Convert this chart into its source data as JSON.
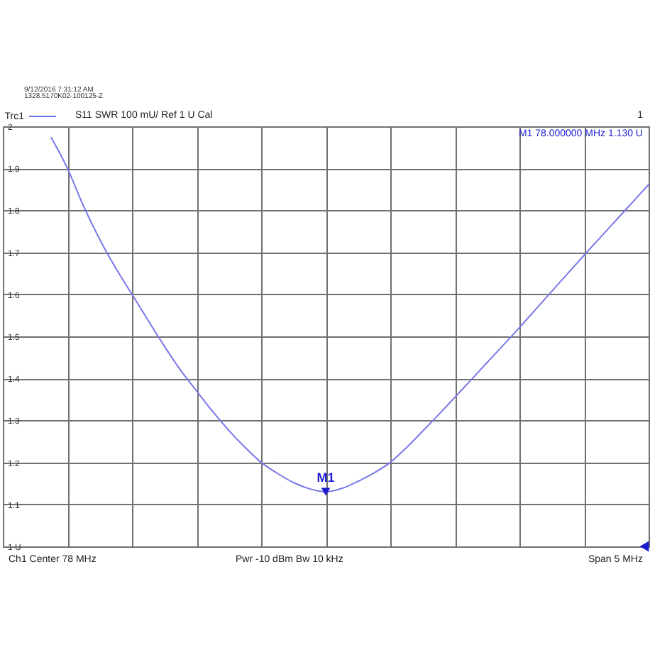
{
  "chart_data": {
    "type": "line",
    "annotations": [
      "9/12/2016 7:31:12 AM",
      "1328.5170K02-100125-Z",
      "S11 SWR 100 mU/ Ref 1 U Cal",
      "1",
      "M1 78.000000 MHz 1.130 U",
      "Ch1 Center 78 MHz",
      "Pwr -10 dBm Bw 10 kHz",
      "Span 5 MHz"
    ],
    "categories": [
      null,
      null,
      null,
      null,
      null,
      null,
      null,
      null,
      null,
      null,
      null,
      null,
      null,
      null,
      null,
      null,
      null,
      null,
      null,
      null,
      null,
      null,
      null,
      null,
      null,
      null,
      null,
      null,
      null,
      null,
      null,
      null,
      null,
      null,
      null,
      null,
      null,
      null,
      null,
      null,
      null
    ],
    "series": [
      {
        "name": "Trc1",
        "color": "#7878e8",
        "values": [
          null,
          null,
          null,
          1.973,
          1.9,
          1.81,
          1.731,
          1.662,
          1.6,
          1.538,
          1.477,
          1.42,
          1.37,
          1.321,
          1.276,
          1.236,
          1.2,
          1.174,
          1.152,
          1.137,
          1.13,
          1.138,
          1.155,
          1.175,
          1.2,
          1.235,
          1.274,
          1.314,
          1.355,
          1.396,
          1.438,
          1.479,
          1.521,
          1.564,
          1.607,
          1.65,
          1.693,
          1.735,
          1.777,
          1.819,
          1.861
        ]
      },
      {
        "type": "scatter",
        "name": "M1",
        "color": "#1c1cd0",
        "marker": "triangle",
        "values": [
          null,
          null,
          null,
          null,
          null,
          null,
          null,
          null,
          null,
          null,
          null,
          null,
          null,
          null,
          null,
          null,
          null,
          null,
          null,
          null,
          1.13,
          null,
          null,
          null,
          null,
          null,
          null,
          null,
          null,
          null,
          null,
          null,
          null,
          null,
          null,
          null,
          null,
          null,
          null,
          null,
          null
        ]
      }
    ],
    "ylim": [
      1,
      2
    ],
    "yticks": [
      {
        "value": 1,
        "label": "1 U"
      },
      1.1,
      1.2,
      1.3,
      1.4,
      1.5,
      1.6,
      1.7,
      1.8,
      1.9,
      2
    ],
    "grid": true,
    "legend": "top left",
    "tick_labels": "y"
  }
}
